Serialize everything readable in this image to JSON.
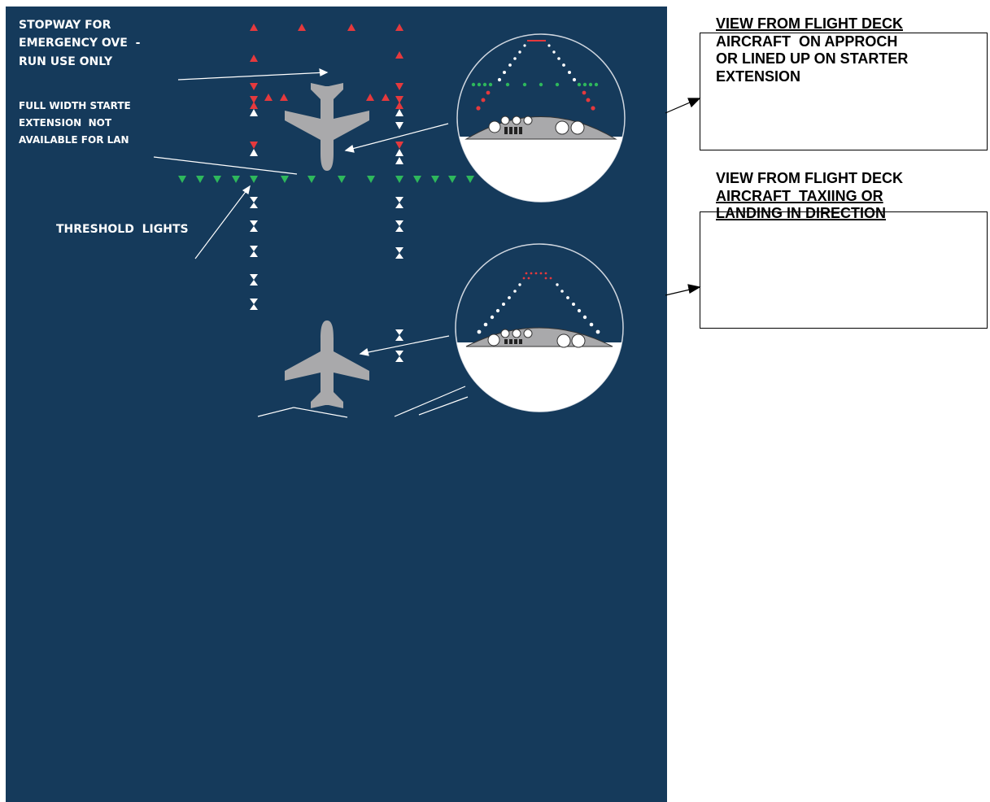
{
  "labels": {
    "stopway": [
      "STOPWAY FOR",
      "EMERGENCY OVE  -",
      "RUN USE ONLY"
    ],
    "full_width": [
      "FULL WIDTH STARTE",
      "EXTENSION  NOT",
      "AVAILABLE FOR LAN"
    ],
    "threshold": "THRESHOLD  LIGHTS"
  },
  "views": [
    {
      "title_lines": [
        "VIEW FROM FLIGHT DECK",
        "AIRCRAFT  ON APPROCH",
        "OR LINED UP ON STARTER",
        "EXTENSION"
      ]
    },
    {
      "title_lines": [
        "VIEW FROM FLIGHT DECK",
        "AIRCRAFT  TAXIING OR",
        "LANDING IN DIRECTION"
      ]
    }
  ],
  "colors": {
    "background": "#153a5b",
    "red_light": "#e5393d",
    "green_light": "#2eb85c",
    "white_light": "#ffffff",
    "aircraft": "#a9a9ab"
  }
}
